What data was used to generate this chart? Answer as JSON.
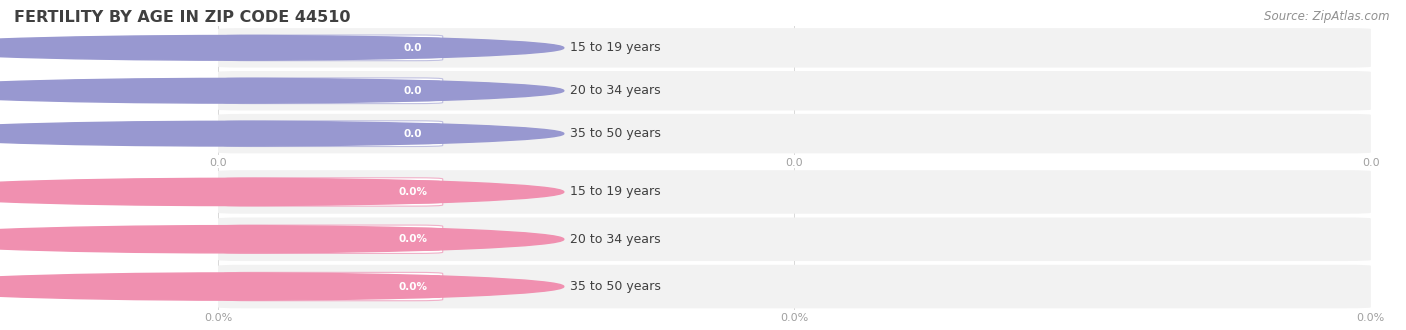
{
  "title": "FERTILITY BY AGE IN ZIP CODE 44510",
  "source": "Source: ZipAtlas.com",
  "top_group": {
    "labels": [
      "15 to 19 years",
      "20 to 34 years",
      "35 to 50 years"
    ],
    "values": [
      0.0,
      0.0,
      0.0
    ],
    "circle_color": "#9898d0",
    "pill_bg": "#ffffff",
    "pill_border": "#c0c0e0",
    "badge_color": "#9898d0",
    "label_color": "#404040",
    "text_color": "#ffffff",
    "unit": ""
  },
  "bottom_group": {
    "labels": [
      "15 to 19 years",
      "20 to 34 years",
      "35 to 50 years"
    ],
    "values": [
      0.0,
      0.0,
      0.0
    ],
    "circle_color": "#f090b0",
    "pill_bg": "#ffffff",
    "pill_border": "#f0b0c8",
    "badge_color": "#f090b0",
    "label_color": "#404040",
    "text_color": "#ffffff",
    "unit": "%"
  },
  "row_bg_color": "#f2f2f2",
  "row_alt_color": "#ebebeb",
  "background_color": "#ffffff",
  "title_color": "#404040",
  "source_color": "#909090",
  "grid_color": "#d8d8d8",
  "tick_color": "#a0a0a0"
}
